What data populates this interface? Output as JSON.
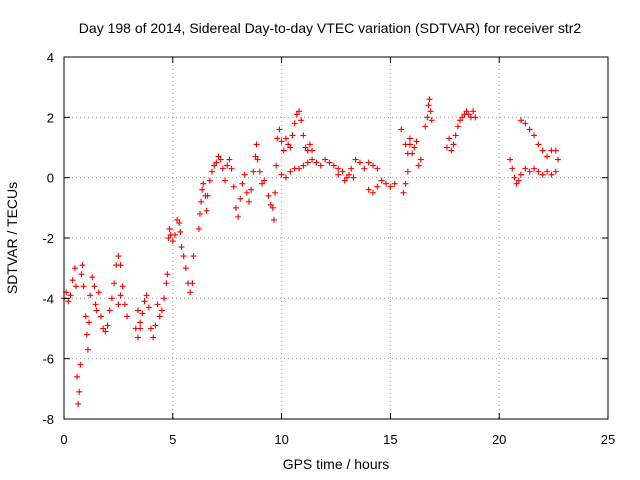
{
  "chart_data": {
    "type": "scatter",
    "title": "Day 198 of 2014, Sidereal Day-to-day VTEC variation (SDTVAR) for receiver str2",
    "xlabel": "GPS time / hours",
    "ylabel": "SDTVAR / TECUs",
    "xlim": [
      0,
      25
    ],
    "ylim": [
      -8,
      4
    ],
    "xticks": [
      0,
      5,
      10,
      15,
      20,
      25
    ],
    "yticks": [
      -8,
      -6,
      -4,
      -2,
      0,
      2,
      4
    ],
    "grid": true,
    "marker": "+",
    "series": [
      {
        "name": "SDTVAR",
        "color": "#ff0000",
        "points": [
          [
            0.0,
            -4.0
          ],
          [
            0.1,
            -3.8
          ],
          [
            0.2,
            -4.1
          ],
          [
            0.3,
            -3.9
          ],
          [
            0.4,
            -3.4
          ],
          [
            0.5,
            -3.0
          ],
          [
            0.55,
            -3.6
          ],
          [
            0.6,
            -6.6
          ],
          [
            0.65,
            -7.5
          ],
          [
            0.7,
            -7.1
          ],
          [
            0.75,
            -6.2
          ],
          [
            0.8,
            -3.2
          ],
          [
            0.85,
            -2.9
          ],
          [
            0.9,
            -3.6
          ],
          [
            1.0,
            -4.6
          ],
          [
            1.05,
            -5.2
          ],
          [
            1.1,
            -5.7
          ],
          [
            1.15,
            -4.8
          ],
          [
            1.2,
            -3.9
          ],
          [
            1.3,
            -3.3
          ],
          [
            1.4,
            -3.6
          ],
          [
            1.45,
            -4.2
          ],
          [
            1.5,
            -4.4
          ],
          [
            1.6,
            -3.8
          ],
          [
            1.7,
            -4.6
          ],
          [
            1.8,
            -5.0
          ],
          [
            1.9,
            -5.1
          ],
          [
            2.0,
            -4.9
          ],
          [
            2.1,
            -4.4
          ],
          [
            2.2,
            -4.0
          ],
          [
            2.3,
            -3.5
          ],
          [
            2.4,
            -2.9
          ],
          [
            2.5,
            -2.6
          ],
          [
            2.6,
            -2.9
          ],
          [
            2.7,
            -3.6
          ],
          [
            2.8,
            -4.2
          ],
          [
            2.9,
            -4.6
          ],
          [
            2.5,
            -4.2
          ],
          [
            2.6,
            -3.9
          ],
          [
            3.3,
            -5.0
          ],
          [
            3.4,
            -5.3
          ],
          [
            3.5,
            -5.0
          ],
          [
            3.6,
            -4.5
          ],
          [
            3.7,
            -4.1
          ],
          [
            3.8,
            -3.9
          ],
          [
            3.9,
            -4.3
          ],
          [
            4.0,
            -5.0
          ],
          [
            4.1,
            -5.3
          ],
          [
            4.2,
            -4.9
          ],
          [
            4.3,
            -4.2
          ],
          [
            3.4,
            -4.4
          ],
          [
            3.5,
            -4.8
          ],
          [
            4.4,
            -4.6
          ],
          [
            4.5,
            -4.4
          ],
          [
            4.6,
            -4.0
          ],
          [
            4.7,
            -3.5
          ],
          [
            4.75,
            -3.2
          ],
          [
            4.8,
            -2.0
          ],
          [
            4.85,
            -1.7
          ],
          [
            4.9,
            -1.9
          ],
          [
            5.0,
            -2.1
          ],
          [
            5.1,
            -1.9
          ],
          [
            5.2,
            -1.4
          ],
          [
            5.3,
            -1.5
          ],
          [
            5.35,
            -1.8
          ],
          [
            5.4,
            -2.3
          ],
          [
            5.5,
            -2.6
          ],
          [
            5.6,
            -3.0
          ],
          [
            5.7,
            -3.5
          ],
          [
            5.8,
            -3.8
          ],
          [
            5.9,
            -3.5
          ],
          [
            5.95,
            -2.6
          ],
          [
            6.2,
            -1.7
          ],
          [
            6.25,
            -1.2
          ],
          [
            6.3,
            -0.8
          ],
          [
            6.35,
            -0.4
          ],
          [
            6.4,
            -0.2
          ],
          [
            6.5,
            -0.6
          ],
          [
            6.55,
            -1.1
          ],
          [
            6.6,
            -0.6
          ],
          [
            6.7,
            -0.1
          ],
          [
            6.8,
            0.2
          ],
          [
            6.9,
            0.4
          ],
          [
            7.0,
            0.5
          ],
          [
            7.1,
            0.7
          ],
          [
            7.2,
            0.6
          ],
          [
            7.3,
            0.3
          ],
          [
            7.4,
            -0.1
          ],
          [
            7.5,
            0.4
          ],
          [
            7.6,
            0.6
          ],
          [
            7.7,
            0.3
          ],
          [
            7.8,
            -0.3
          ],
          [
            7.9,
            -1.0
          ],
          [
            8.0,
            -1.3
          ],
          [
            8.1,
            -0.7
          ],
          [
            8.2,
            -0.2
          ],
          [
            8.3,
            0.1
          ],
          [
            8.4,
            -0.5
          ],
          [
            8.5,
            -0.8
          ],
          [
            8.6,
            -0.4
          ],
          [
            8.7,
            0.2
          ],
          [
            8.8,
            0.7
          ],
          [
            8.85,
            1.1
          ],
          [
            8.9,
            0.6
          ],
          [
            9.0,
            0.2
          ],
          [
            9.1,
            -0.2
          ],
          [
            9.2,
            -0.1
          ],
          [
            9.4,
            -0.6
          ],
          [
            9.5,
            -0.9
          ],
          [
            9.6,
            -1.0
          ],
          [
            9.65,
            -1.4
          ],
          [
            9.7,
            -0.5
          ],
          [
            9.75,
            0.4
          ],
          [
            9.8,
            1.3
          ],
          [
            9.9,
            1.6
          ],
          [
            10.0,
            1.2
          ],
          [
            10.1,
            0.9
          ],
          [
            10.2,
            1.3
          ],
          [
            10.3,
            1.1
          ],
          [
            10.4,
            1.0
          ],
          [
            10.5,
            1.4
          ],
          [
            10.6,
            1.8
          ],
          [
            10.7,
            2.1
          ],
          [
            10.8,
            2.2
          ],
          [
            10.9,
            1.9
          ],
          [
            11.0,
            1.4
          ],
          [
            11.1,
            1.0
          ],
          [
            11.2,
            0.9
          ],
          [
            11.3,
            1.1
          ],
          [
            11.4,
            0.9
          ],
          [
            10.0,
            0.1
          ],
          [
            10.2,
            0.0
          ],
          [
            10.4,
            0.2
          ],
          [
            10.6,
            0.3
          ],
          [
            10.8,
            0.3
          ],
          [
            11.0,
            0.4
          ],
          [
            11.2,
            0.5
          ],
          [
            11.4,
            0.6
          ],
          [
            11.6,
            0.5
          ],
          [
            11.8,
            0.4
          ],
          [
            12.0,
            0.6
          ],
          [
            12.2,
            0.5
          ],
          [
            12.4,
            0.4
          ],
          [
            12.6,
            0.3
          ],
          [
            12.8,
            0.2
          ],
          [
            13.0,
            0.0
          ],
          [
            13.2,
            0.3
          ],
          [
            13.4,
            0.6
          ],
          [
            13.6,
            0.5
          ],
          [
            13.8,
            0.3
          ],
          [
            14.0,
            0.5
          ],
          [
            14.2,
            0.4
          ],
          [
            14.4,
            0.3
          ],
          [
            12.6,
            0.1
          ],
          [
            12.9,
            -0.1
          ],
          [
            13.1,
            0.1
          ],
          [
            13.3,
            0.0
          ],
          [
            14.0,
            -0.4
          ],
          [
            14.2,
            -0.5
          ],
          [
            14.4,
            -0.3
          ],
          [
            14.6,
            -0.1
          ],
          [
            14.8,
            -0.2
          ],
          [
            15.0,
            -0.3
          ],
          [
            15.2,
            -0.2
          ],
          [
            15.6,
            -0.5
          ],
          [
            15.7,
            -0.2
          ],
          [
            15.8,
            0.2
          ],
          [
            15.7,
            1.1
          ],
          [
            15.8,
            0.8
          ],
          [
            15.9,
            1.1
          ],
          [
            16.0,
            0.8
          ],
          [
            16.1,
            1.0
          ],
          [
            16.2,
            1.2
          ],
          [
            15.5,
            1.6
          ],
          [
            15.9,
            1.3
          ],
          [
            16.3,
            0.4
          ],
          [
            16.4,
            0.6
          ],
          [
            16.6,
            1.7
          ],
          [
            16.7,
            2.0
          ],
          [
            16.75,
            2.4
          ],
          [
            16.8,
            2.6
          ],
          [
            16.85,
            2.2
          ],
          [
            16.9,
            1.9
          ],
          [
            17.6,
            1.0
          ],
          [
            17.7,
            1.3
          ],
          [
            17.8,
            0.9
          ],
          [
            17.9,
            1.1
          ],
          [
            18.0,
            1.4
          ],
          [
            18.1,
            1.7
          ],
          [
            18.2,
            1.9
          ],
          [
            18.3,
            2.0
          ],
          [
            18.4,
            2.1
          ],
          [
            18.5,
            2.2
          ],
          [
            18.6,
            2.1
          ],
          [
            18.7,
            2.0
          ],
          [
            18.8,
            2.2
          ],
          [
            18.9,
            2.0
          ],
          [
            20.5,
            0.6
          ],
          [
            20.6,
            0.3
          ],
          [
            20.7,
            0.0
          ],
          [
            20.8,
            -0.2
          ],
          [
            20.9,
            -0.1
          ],
          [
            21.0,
            0.1
          ],
          [
            21.2,
            0.3
          ],
          [
            21.4,
            0.2
          ],
          [
            21.6,
            0.3
          ],
          [
            21.8,
            0.2
          ],
          [
            22.0,
            0.1
          ],
          [
            22.2,
            0.2
          ],
          [
            22.4,
            0.1
          ],
          [
            22.6,
            0.2
          ],
          [
            21.0,
            1.9
          ],
          [
            21.2,
            1.8
          ],
          [
            21.4,
            1.6
          ],
          [
            21.6,
            1.4
          ],
          [
            21.8,
            1.1
          ],
          [
            22.0,
            0.9
          ],
          [
            22.2,
            0.7
          ],
          [
            22.4,
            0.9
          ],
          [
            22.6,
            0.9
          ],
          [
            22.7,
            0.6
          ]
        ]
      }
    ]
  }
}
